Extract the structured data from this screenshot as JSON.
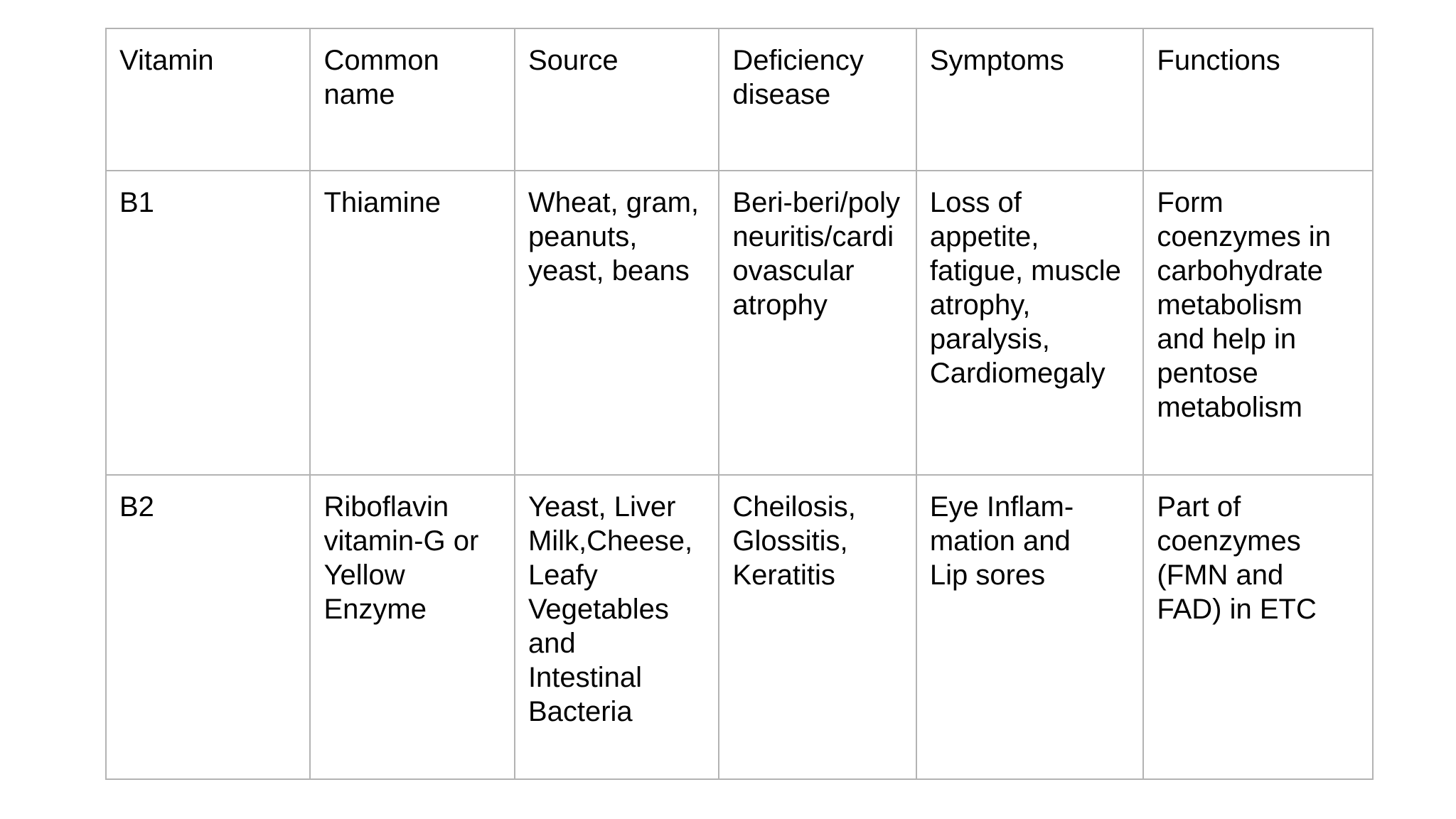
{
  "table": {
    "headers": [
      "Vitamin",
      "Common\nname",
      "Source",
      "Deficiency\ndisease",
      "Symptoms",
      "Functions"
    ],
    "rows": [
      [
        "B1",
        "Thiamine",
        "Wheat, gram,\npeanuts,\nyeast, beans",
        "Beri-beri/poly\nneuritis/cardi\novascular\natrophy",
        "Loss of\nappetite,\nfatigue, muscle\natrophy,\nparalysis,\nCardiomegaly",
        "Form\ncoenzymes in\ncarbohydrate\nmetabolism\nand help in\npentose\nmetabolism"
      ],
      [
        "B2",
        "Riboflavin\nvitamin-G or\nYellow\nEnzyme",
        "Yeast, Liver\nMilk,Cheese,\nLeafy\nVegetables\nand\nIntestinal\nBacteria",
        "Cheilosis,\nGlossitis,\nKeratitis",
        "Eye Inflam-\nmation and\nLip sores",
        "Part of\ncoenzymes\n(FMN and\nFAD) in ETC"
      ]
    ]
  }
}
